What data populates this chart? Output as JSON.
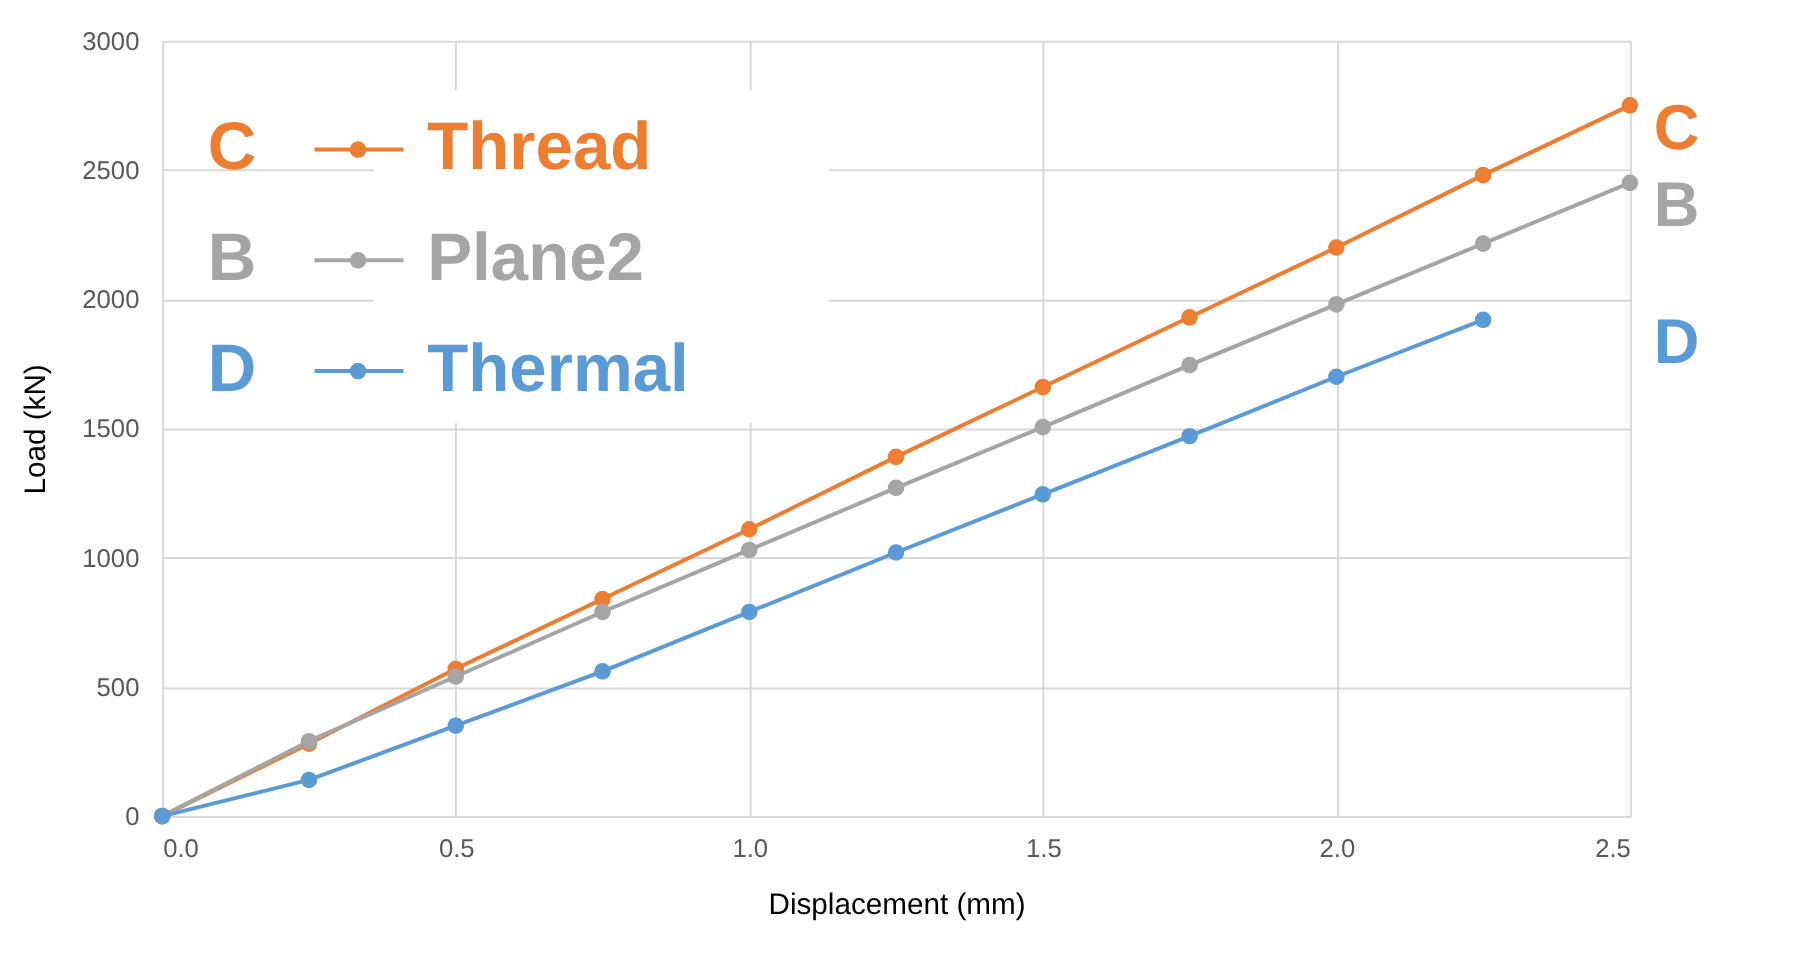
{
  "chart_data": {
    "type": "line",
    "xlabel": "Displacement (mm)",
    "ylabel": "Load (kN)",
    "x": [
      0,
      0.25,
      0.5,
      0.75,
      1.0,
      1.25,
      1.5,
      1.75,
      2.0,
      2.25,
      2.5
    ],
    "series": [
      {
        "name": "Thread",
        "color": "#ed7d31",
        "values": [
          0,
          280,
          570,
          840,
          1110,
          1390,
          1660,
          1930,
          2200,
          2480,
          2750
        ]
      },
      {
        "name": "Plane2",
        "color": "#a5a5a5",
        "values": [
          0,
          290,
          540,
          790,
          1030,
          1270,
          1505,
          1745,
          1980,
          2215,
          2450
        ]
      },
      {
        "name": "Thermal",
        "color": "#5b9bd5",
        "values": [
          0,
          140,
          350,
          560,
          790,
          1020,
          1245,
          1470,
          1700,
          1920,
          null
        ]
      }
    ],
    "xlim": [
      0,
      2.5
    ],
    "xticks": [
      {
        "value": 0,
        "label": "0.0"
      },
      {
        "value": 0.5,
        "label": "0.5"
      },
      {
        "value": 1,
        "label": "1.0"
      },
      {
        "value": 1.5,
        "label": "1.5"
      },
      {
        "value": 2,
        "label": "2.0"
      },
      {
        "value": 2.5,
        "label": "2.5"
      }
    ],
    "ylim": [
      0,
      3000
    ],
    "yticks": [
      0,
      500,
      1000,
      1500,
      2000,
      2500,
      3000
    ],
    "grid": true,
    "legend": "top left",
    "marker": "circle",
    "line_style": "solid",
    "annotations": [
      "C",
      "B",
      "D",
      "C",
      "B",
      "D"
    ]
  }
}
